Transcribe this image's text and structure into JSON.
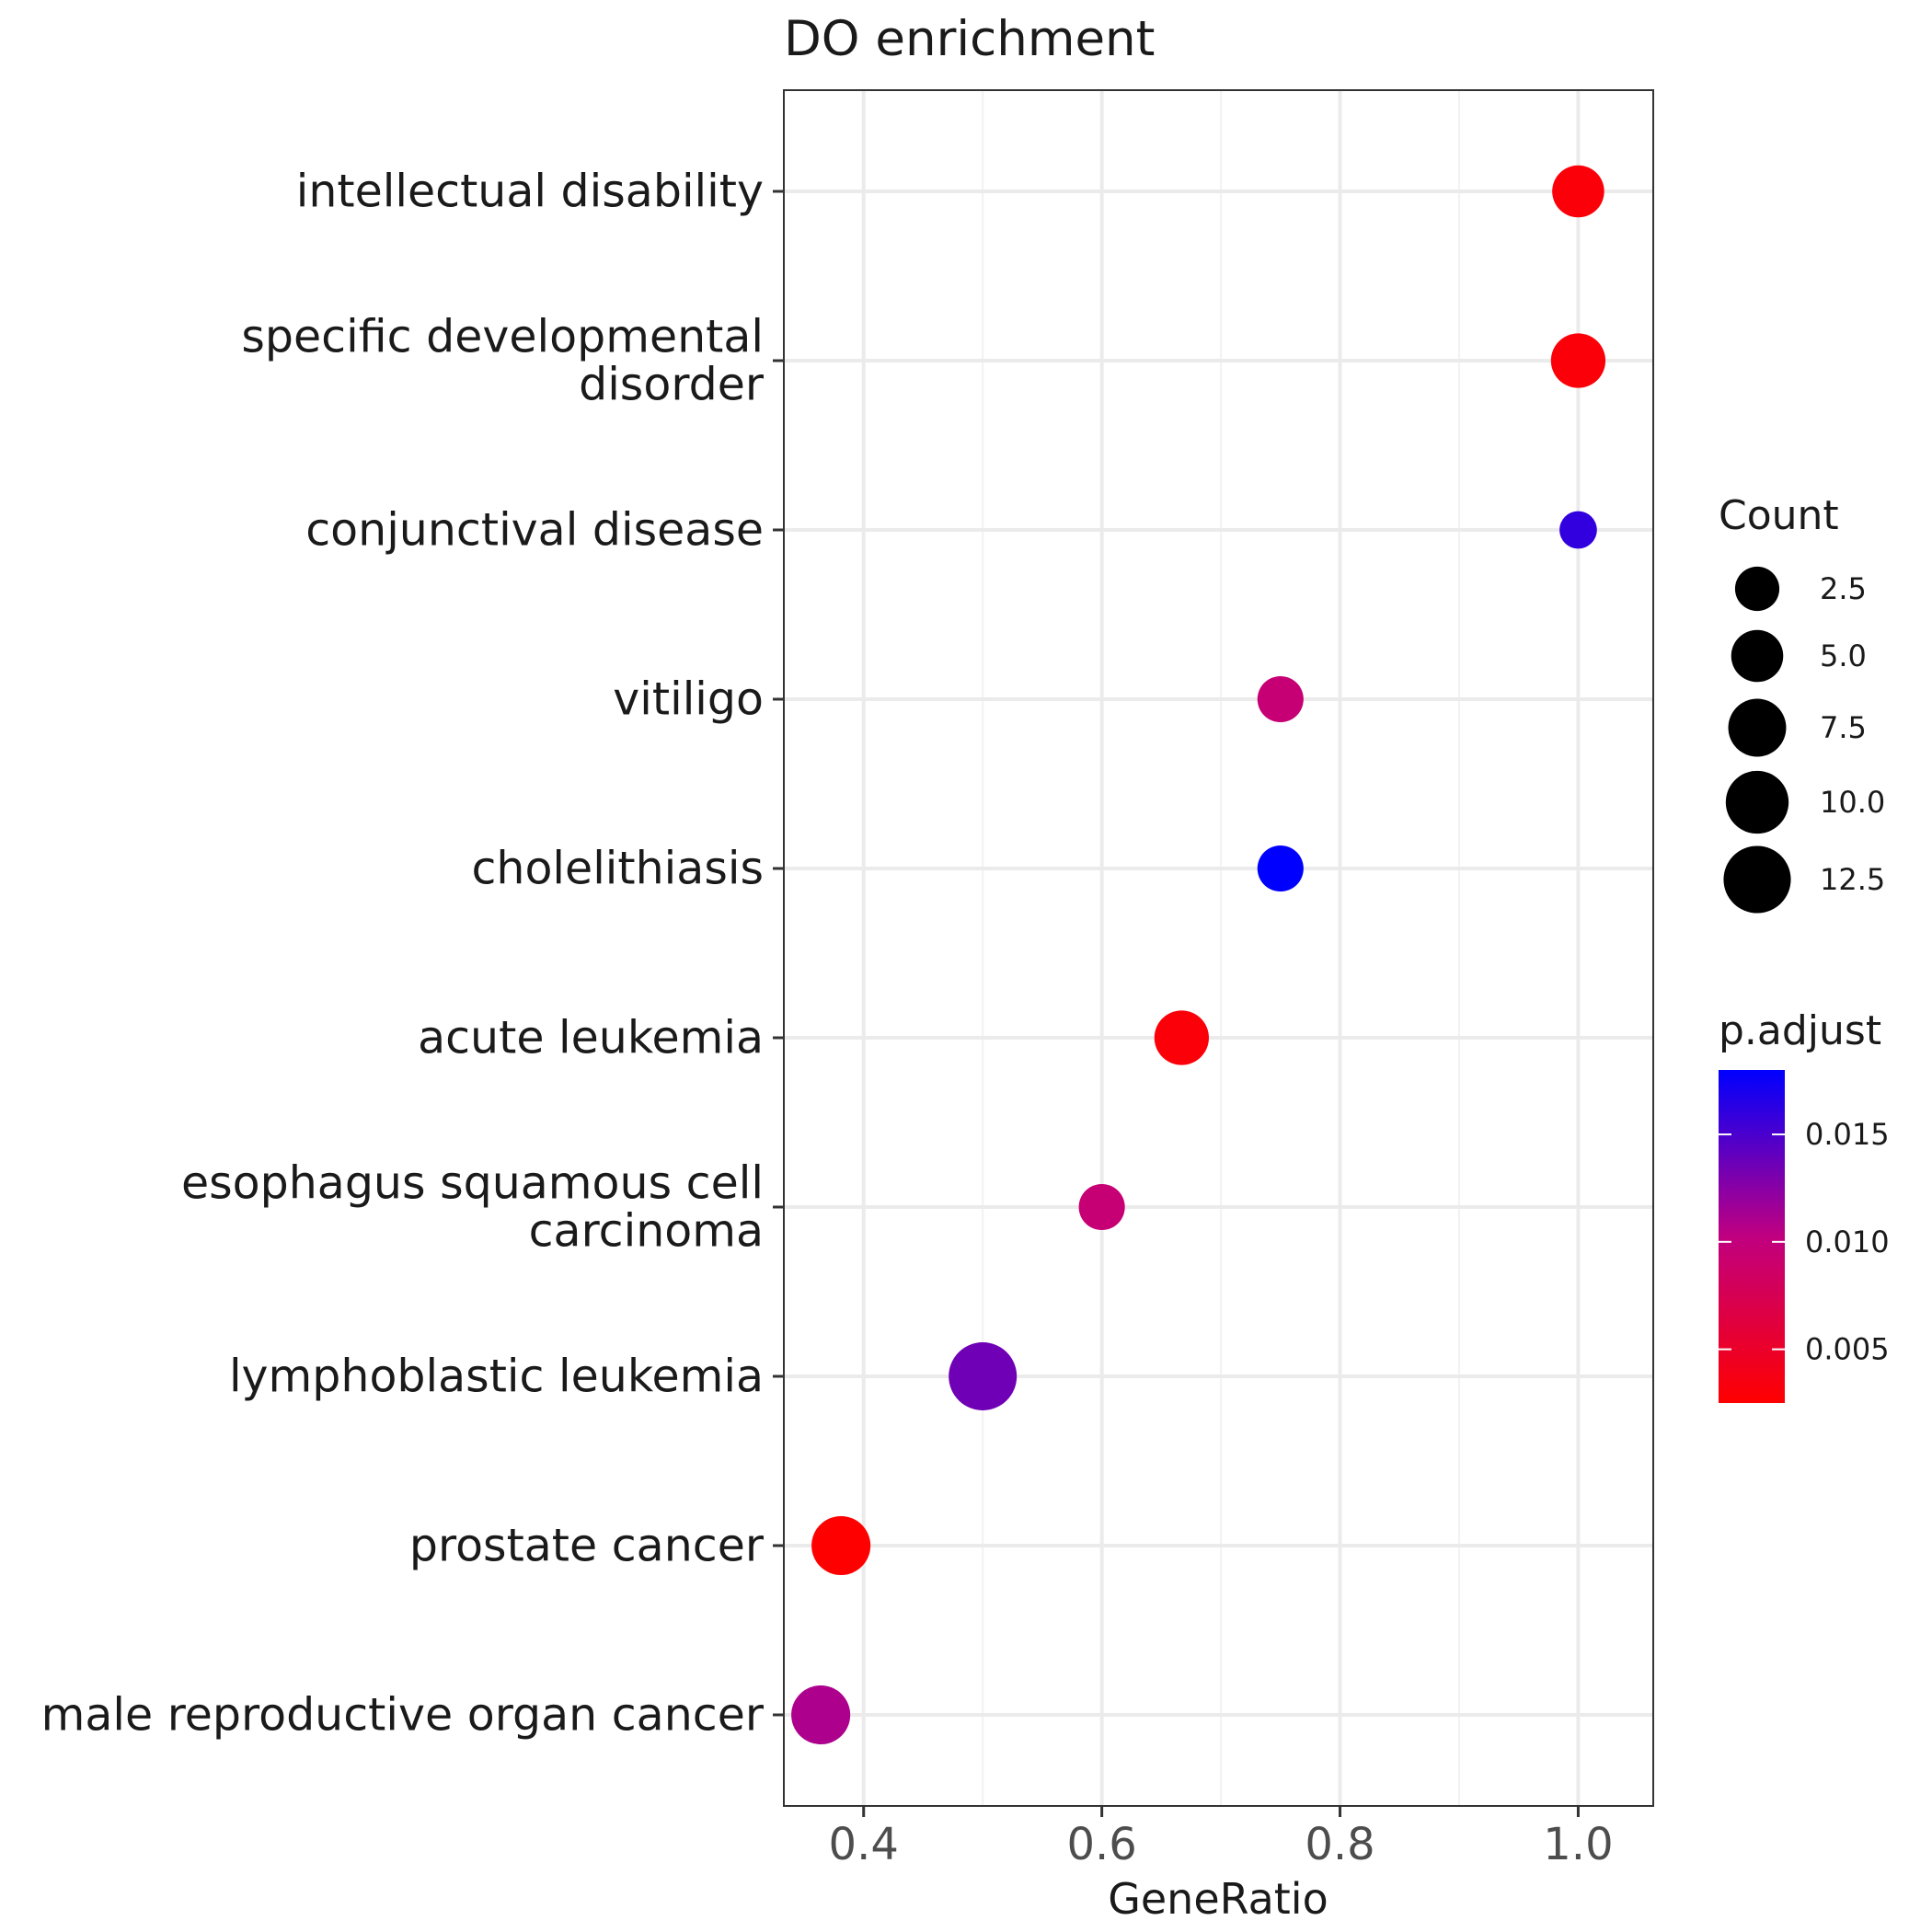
{
  "chart_data": {
    "type": "scatter",
    "title": "DO enrichment",
    "xlabel": "GeneRatio",
    "ylabel": "",
    "xlim": [
      0.333,
      1.063
    ],
    "xticks": [
      "0.4",
      "0.6",
      "0.8",
      "1.0"
    ],
    "xtick_values": [
      0.4,
      0.6,
      0.8,
      1.0
    ],
    "grid": true,
    "categories": [
      "intellectual disability",
      "specific developmental disorder",
      "conjunctival disease",
      "vitiligo",
      "cholelithiasis",
      "acute leukemia",
      "esophagus squamous cell carcinoma",
      "lymphoblastic leukemia",
      "prostate cancer",
      "male reproductive organ cancer"
    ],
    "category_lines": [
      [
        "intellectual disability"
      ],
      [
        "specific developmental",
        "disorder"
      ],
      [
        "conjunctival disease"
      ],
      [
        "vitiligo"
      ],
      [
        "cholelithiasis"
      ],
      [
        "acute leukemia"
      ],
      [
        "esophagus squamous cell",
        "carcinoma"
      ],
      [
        "lymphoblastic leukemia"
      ],
      [
        "prostate cancer"
      ],
      [
        "male reproductive organ cancer"
      ]
    ],
    "points": [
      {
        "category": "intellectual disability",
        "x": 1.0,
        "count": 5,
        "p_adjust": 0.003
      },
      {
        "category": "specific developmental disorder",
        "x": 1.0,
        "count": 6,
        "p_adjust": 0.003
      },
      {
        "category": "conjunctival disease",
        "x": 1.0,
        "count": 1,
        "p_adjust": 0.016
      },
      {
        "category": "vitiligo",
        "x": 0.75,
        "count": 3,
        "p_adjust": 0.0095
      },
      {
        "category": "cholelithiasis",
        "x": 0.75,
        "count": 3,
        "p_adjust": 0.018
      },
      {
        "category": "acute leukemia",
        "x": 0.667,
        "count": 6,
        "p_adjust": 0.003
      },
      {
        "category": "esophagus squamous cell carcinoma",
        "x": 0.6,
        "count": 3,
        "p_adjust": 0.0095
      },
      {
        "category": "lymphoblastic leukemia",
        "x": 0.5,
        "count": 13,
        "p_adjust": 0.0135
      },
      {
        "category": "prostate cancer",
        "x": 0.381,
        "count": 8,
        "p_adjust": 0.0025
      },
      {
        "category": "male reproductive organ cancer",
        "x": 0.364,
        "count": 8,
        "p_adjust": 0.011
      }
    ],
    "size_legend": {
      "title": "Count",
      "labels": [
        "2.5",
        "5.0",
        "7.5",
        "10.0",
        "12.5"
      ],
      "values": [
        2.5,
        5.0,
        7.5,
        10.0,
        12.5
      ],
      "position": "right"
    },
    "color_legend": {
      "title": "p.adjust",
      "labels": [
        "0.015",
        "0.010",
        "0.005"
      ],
      "values": [
        0.015,
        0.01,
        0.005
      ],
      "range": [
        0.0025,
        0.018
      ],
      "low_color": "#ff0000",
      "high_color": "#0000ff",
      "position": "right"
    }
  }
}
